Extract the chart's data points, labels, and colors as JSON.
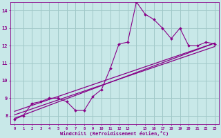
{
  "background_color": "#c8e8e8",
  "grid_color": "#a0c8c8",
  "line_color": "#880088",
  "marker_color": "#880088",
  "xlabel": "Windchill (Refroidissement éolien,°C)",
  "ylabel_ticks": [
    8,
    9,
    10,
    11,
    12,
    13,
    14
  ],
  "xtick_values": [
    0,
    1,
    2,
    3,
    4,
    5,
    6,
    7,
    8,
    9,
    10,
    11,
    12,
    13,
    14,
    15,
    16,
    17,
    18,
    19,
    20,
    21,
    22,
    23
  ],
  "xtick_labels": [
    "0",
    "1",
    "2",
    "3",
    "4",
    "5",
    "6",
    "7",
    "8",
    "9",
    "10",
    "11",
    "12",
    "13",
    "",
    "15",
    "16",
    "17",
    "18",
    "19",
    "20",
    "21",
    "22",
    "23"
  ],
  "xlim": [
    -0.5,
    23.5
  ],
  "ylim": [
    7.5,
    14.5
  ],
  "scatter_x": [
    0,
    1,
    2,
    3,
    4,
    5,
    6,
    7,
    8,
    9,
    10,
    11,
    12,
    13,
    14,
    15,
    16,
    17,
    18,
    19,
    20,
    21,
    22,
    23
  ],
  "scatter_y": [
    7.8,
    8.0,
    8.7,
    8.8,
    9.0,
    9.0,
    8.8,
    8.3,
    8.3,
    9.1,
    9.5,
    10.7,
    12.1,
    12.2,
    14.5,
    13.8,
    13.5,
    13.0,
    12.4,
    13.0,
    12.0,
    12.0,
    12.2,
    12.1
  ],
  "reg_line1": [
    [
      0,
      23
    ],
    [
      8.25,
      12.15
    ]
  ],
  "reg_line2": [
    [
      0,
      23
    ],
    [
      7.85,
      12.15
    ]
  ],
  "reg_line3": [
    [
      0,
      23
    ],
    [
      8.05,
      11.95
    ]
  ],
  "title_fontsize": 6,
  "xlabel_fontsize": 5,
  "ytick_fontsize": 5,
  "xtick_fontsize": 4
}
